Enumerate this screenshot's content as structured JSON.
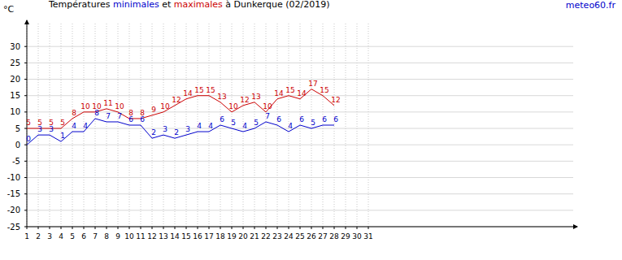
{
  "chart_data": {
    "type": "line",
    "title": "Températures minimales et maximales à Dunkerque (02/2019)",
    "source": "meteo60.fr",
    "y_label": "°C",
    "x": [
      1,
      2,
      3,
      4,
      5,
      6,
      7,
      8,
      9,
      10,
      11,
      12,
      13,
      14,
      15,
      16,
      17,
      18,
      19,
      20,
      21,
      22,
      23,
      24,
      25,
      26,
      27,
      28
    ],
    "series": [
      {
        "name": "minimales",
        "color": "#0000cc",
        "values": [
          0,
          3,
          3,
          1,
          4,
          4,
          8,
          7,
          7,
          6,
          6,
          2,
          3,
          2,
          3,
          4,
          4,
          6,
          5,
          4,
          5,
          7,
          6,
          4,
          6,
          5,
          6,
          6
        ]
      },
      {
        "name": "maximales",
        "color": "#cc0000",
        "values": [
          5,
          5,
          5,
          5,
          8,
          10,
          10,
          11,
          10,
          8,
          8,
          9,
          10,
          12,
          14,
          15,
          15,
          13,
          10,
          12,
          13,
          10,
          14,
          15,
          14,
          17,
          15,
          12
        ]
      }
    ],
    "xlim": [
      1,
      49
    ],
    "xticks": [
      1,
      2,
      3,
      4,
      5,
      6,
      7,
      8,
      9,
      10,
      11,
      12,
      13,
      14,
      15,
      16,
      17,
      18,
      19,
      20,
      21,
      22,
      23,
      24,
      25,
      26,
      27,
      28,
      29,
      30,
      31
    ],
    "ylim": [
      -25,
      37
    ],
    "yticks": [
      -25,
      -20,
      -15,
      -10,
      -5,
      0,
      5,
      10,
      15,
      20,
      25,
      30
    ],
    "grid": true,
    "data_labels": true
  }
}
